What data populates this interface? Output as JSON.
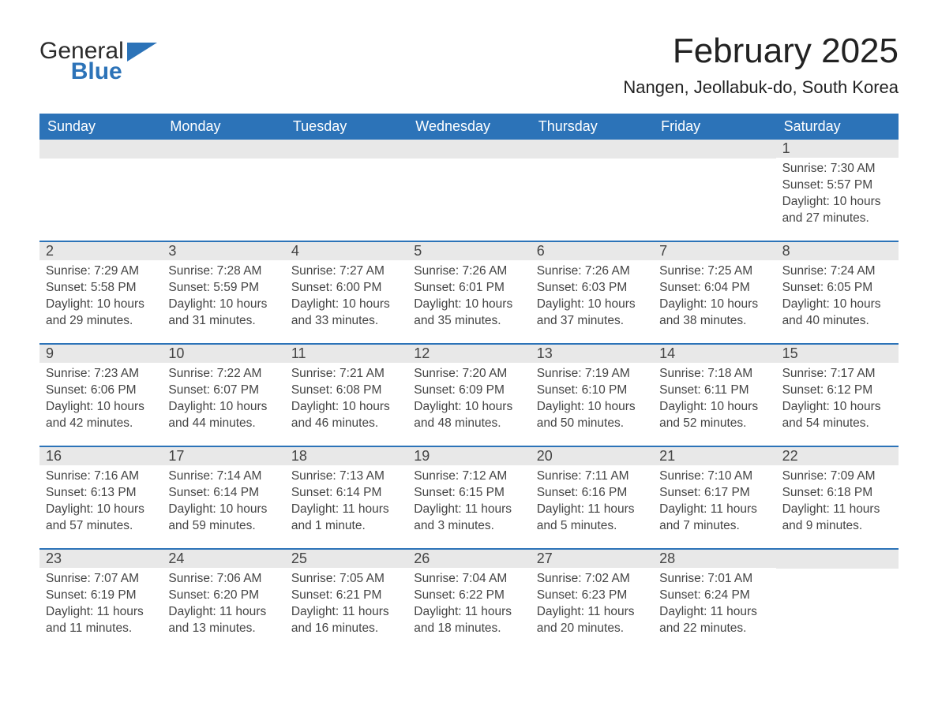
{
  "brand": {
    "text1": "General",
    "text2": "Blue",
    "accent_color": "#2c73b8"
  },
  "title": "February 2025",
  "subtitle": "Nangen, Jeollabuk-do, South Korea",
  "colors": {
    "header_bg": "#2c73b8",
    "day_head_bg": "#e8e8e8",
    "week_border": "#2c73b8",
    "text": "#333333"
  },
  "daysOfWeek": [
    "Sunday",
    "Monday",
    "Tuesday",
    "Wednesday",
    "Thursday",
    "Friday",
    "Saturday"
  ],
  "weeks": [
    [
      null,
      null,
      null,
      null,
      null,
      null,
      {
        "n": "1",
        "sunrise": "7:30 AM",
        "sunset": "5:57 PM",
        "daylight": "10 hours and 27 minutes."
      }
    ],
    [
      {
        "n": "2",
        "sunrise": "7:29 AM",
        "sunset": "5:58 PM",
        "daylight": "10 hours and 29 minutes."
      },
      {
        "n": "3",
        "sunrise": "7:28 AM",
        "sunset": "5:59 PM",
        "daylight": "10 hours and 31 minutes."
      },
      {
        "n": "4",
        "sunrise": "7:27 AM",
        "sunset": "6:00 PM",
        "daylight": "10 hours and 33 minutes."
      },
      {
        "n": "5",
        "sunrise": "7:26 AM",
        "sunset": "6:01 PM",
        "daylight": "10 hours and 35 minutes."
      },
      {
        "n": "6",
        "sunrise": "7:26 AM",
        "sunset": "6:03 PM",
        "daylight": "10 hours and 37 minutes."
      },
      {
        "n": "7",
        "sunrise": "7:25 AM",
        "sunset": "6:04 PM",
        "daylight": "10 hours and 38 minutes."
      },
      {
        "n": "8",
        "sunrise": "7:24 AM",
        "sunset": "6:05 PM",
        "daylight": "10 hours and 40 minutes."
      }
    ],
    [
      {
        "n": "9",
        "sunrise": "7:23 AM",
        "sunset": "6:06 PM",
        "daylight": "10 hours and 42 minutes."
      },
      {
        "n": "10",
        "sunrise": "7:22 AM",
        "sunset": "6:07 PM",
        "daylight": "10 hours and 44 minutes."
      },
      {
        "n": "11",
        "sunrise": "7:21 AM",
        "sunset": "6:08 PM",
        "daylight": "10 hours and 46 minutes."
      },
      {
        "n": "12",
        "sunrise": "7:20 AM",
        "sunset": "6:09 PM",
        "daylight": "10 hours and 48 minutes."
      },
      {
        "n": "13",
        "sunrise": "7:19 AM",
        "sunset": "6:10 PM",
        "daylight": "10 hours and 50 minutes."
      },
      {
        "n": "14",
        "sunrise": "7:18 AM",
        "sunset": "6:11 PM",
        "daylight": "10 hours and 52 minutes."
      },
      {
        "n": "15",
        "sunrise": "7:17 AM",
        "sunset": "6:12 PM",
        "daylight": "10 hours and 54 minutes."
      }
    ],
    [
      {
        "n": "16",
        "sunrise": "7:16 AM",
        "sunset": "6:13 PM",
        "daylight": "10 hours and 57 minutes."
      },
      {
        "n": "17",
        "sunrise": "7:14 AM",
        "sunset": "6:14 PM",
        "daylight": "10 hours and 59 minutes."
      },
      {
        "n": "18",
        "sunrise": "7:13 AM",
        "sunset": "6:14 PM",
        "daylight": "11 hours and 1 minute."
      },
      {
        "n": "19",
        "sunrise": "7:12 AM",
        "sunset": "6:15 PM",
        "daylight": "11 hours and 3 minutes."
      },
      {
        "n": "20",
        "sunrise": "7:11 AM",
        "sunset": "6:16 PM",
        "daylight": "11 hours and 5 minutes."
      },
      {
        "n": "21",
        "sunrise": "7:10 AM",
        "sunset": "6:17 PM",
        "daylight": "11 hours and 7 minutes."
      },
      {
        "n": "22",
        "sunrise": "7:09 AM",
        "sunset": "6:18 PM",
        "daylight": "11 hours and 9 minutes."
      }
    ],
    [
      {
        "n": "23",
        "sunrise": "7:07 AM",
        "sunset": "6:19 PM",
        "daylight": "11 hours and 11 minutes."
      },
      {
        "n": "24",
        "sunrise": "7:06 AM",
        "sunset": "6:20 PM",
        "daylight": "11 hours and 13 minutes."
      },
      {
        "n": "25",
        "sunrise": "7:05 AM",
        "sunset": "6:21 PM",
        "daylight": "11 hours and 16 minutes."
      },
      {
        "n": "26",
        "sunrise": "7:04 AM",
        "sunset": "6:22 PM",
        "daylight": "11 hours and 18 minutes."
      },
      {
        "n": "27",
        "sunrise": "7:02 AM",
        "sunset": "6:23 PM",
        "daylight": "11 hours and 20 minutes."
      },
      {
        "n": "28",
        "sunrise": "7:01 AM",
        "sunset": "6:24 PM",
        "daylight": "11 hours and 22 minutes."
      },
      null
    ]
  ],
  "labels": {
    "sunrise": "Sunrise: ",
    "sunset": "Sunset: ",
    "daylight": "Daylight: "
  }
}
